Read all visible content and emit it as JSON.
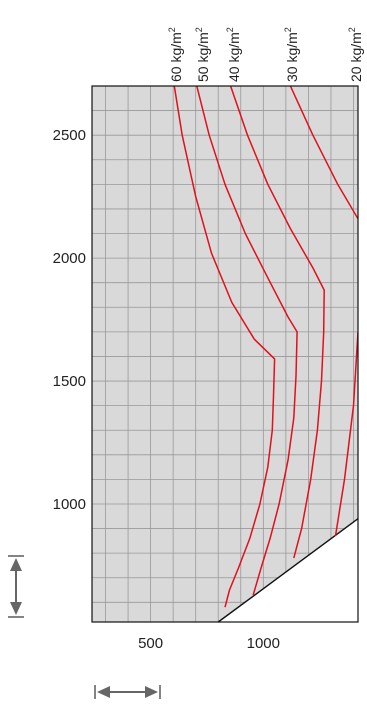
{
  "chart_data": {
    "type": "line",
    "xlabel": "",
    "ylabel": "",
    "title": "",
    "xlim": [
      240,
      1420
    ],
    "ylim": [
      520,
      2700
    ],
    "xticks": [
      "500",
      "1000"
    ],
    "xtick_values": [
      500,
      1000
    ],
    "yticks": [
      "1000",
      "1500",
      "2000",
      "2500"
    ],
    "ytick_values": [
      1000,
      1500,
      2000,
      2500
    ],
    "grid": true,
    "background_color": "#d9d9d9",
    "grid_color": "#999999",
    "line_color": "#e0101c",
    "curve_label_unit": "kg/m²",
    "boundary": {
      "x": [
        800,
        1420
      ],
      "y": [
        520,
        940
      ],
      "below_fill": "#ffffff"
    },
    "series": [
      {
        "name": "60 kg/m²",
        "label_main": "60 kg/m",
        "label_sup": "2",
        "x": [
          605,
          640,
          700,
          770,
          860,
          960,
          1050,
          1045,
          1040,
          1020,
          985,
          940,
          890,
          850,
          830
        ],
        "y": [
          2700,
          2500,
          2250,
          2020,
          1820,
          1670,
          1590,
          1440,
          1300,
          1150,
          1000,
          860,
          740,
          650,
          580
        ]
      },
      {
        "name": "50 kg/m²",
        "label_main": "50 kg/m",
        "label_sup": "2",
        "x": [
          705,
          760,
          830,
          920,
          1020,
          1110,
          1150,
          1145,
          1135,
          1110,
          1070,
          1030,
          990,
          955
        ],
        "y": [
          2700,
          2500,
          2300,
          2100,
          1920,
          1760,
          1700,
          1520,
          1350,
          1180,
          1000,
          860,
          740,
          630
        ]
      },
      {
        "name": "40 kg/m²",
        "label_main": "40 kg/m",
        "label_sup": "2",
        "x": [
          855,
          930,
          1020,
          1120,
          1220,
          1270,
          1268,
          1258,
          1240,
          1210,
          1170,
          1135
        ],
        "y": [
          2700,
          2500,
          2300,
          2120,
          1960,
          1870,
          1700,
          1500,
          1300,
          1100,
          900,
          780
        ]
      },
      {
        "name": "30 kg/m²",
        "label_main": "30 kg/m",
        "label_sup": "2",
        "x": [
          1120,
          1220,
          1330,
          1420
        ],
        "y": [
          2700,
          2500,
          2300,
          2160
        ]
      },
      {
        "name": "20 kg/m²",
        "label_main": "20 kg/m",
        "label_sup": "2",
        "x": [
          1420,
          1400,
          1360,
          1320
        ],
        "y": [
          1700,
          1400,
          1100,
          870
        ]
      }
    ],
    "legend": {
      "horizontal_arrow_icon": "double-arrow-horizontal",
      "vertical_arrow_icon": "double-arrow-vertical"
    }
  }
}
